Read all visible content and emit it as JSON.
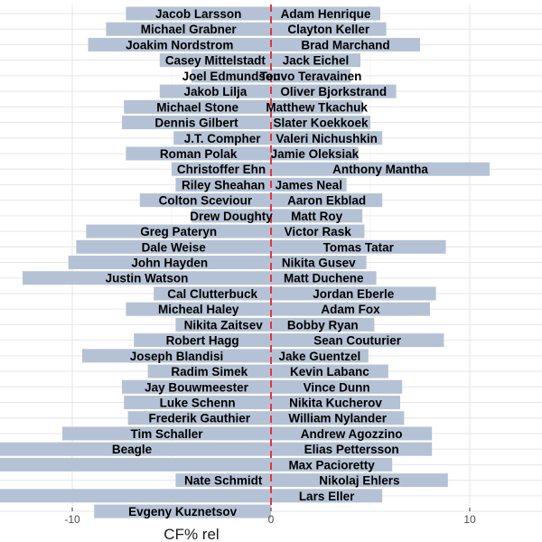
{
  "chart_data": {
    "type": "bar",
    "orientation": "horizontal",
    "xlabel": "CF% rel",
    "x_ticks": [
      -10,
      0,
      10
    ],
    "xlim": [
      -13.6,
      13.6
    ],
    "reference_line": {
      "x": 0,
      "style": "dashed",
      "color": "#e8333d"
    },
    "bar_color": "#b5c2d5",
    "grid": true,
    "series": [
      {
        "side": "left",
        "labels": [
          "Jacob Larsson",
          "Michael Grabner",
          "Joakim Nordstrom",
          "Casey Mittelstadt",
          "Joel Edmundson",
          "Jakob Lilja",
          "Michael Stone",
          "Dennis Gilbert",
          "J.T. Compher",
          "Roman Polak",
          "Christoffer Ehn",
          "Riley Sheahan",
          "Colton Sceviour",
          "Drew Doughty",
          "Greg Pateryn",
          "Dale Weise",
          "John Hayden",
          "Justin Watson",
          "Cal Clutterbuck",
          "Micheal Haley",
          "Nikita Zaitsev",
          "Robert Hagg",
          "Joseph Blandisi",
          "Radim Simek",
          "Jay Bouwmeester",
          "Luke Schenn",
          "Frederik Gauthier",
          "Tim Schaller",
          "Beagle",
          "",
          "Nate Schmidt",
          "",
          "Evgeny Kuznetsov"
        ],
        "values": [
          -7.3,
          -8.3,
          -9.2,
          -5.6,
          -4.0,
          -5.6,
          -7.4,
          -7.5,
          -4.9,
          -7.3,
          -5.0,
          -4.8,
          -6.6,
          -4.0,
          -9.3,
          -9.8,
          -10.2,
          -12.5,
          -5.9,
          -7.3,
          -4.8,
          -6.9,
          -9.5,
          -6.2,
          -7.5,
          -7.4,
          -7.2,
          -10.5,
          -14.0,
          -14.0,
          -4.8,
          -14.0,
          -8.9
        ]
      },
      {
        "side": "right",
        "labels": [
          "Adam Henrique",
          "Clayton Keller",
          "Brad Marchand",
          "Jack Eichel",
          "Teuvo Teravainen",
          "Oliver Bjorkstrand",
          "Matthew Tkachuk",
          "Slater Koekkoek",
          "Valeri Nichushkin",
          "Jamie Oleksiak",
          "Anthony Mantha",
          "James Neal",
          "Aaron Ekblad",
          "Matt Roy",
          "Victor Rask",
          "Tomas Tatar",
          "Nikita Gusev",
          "Matt Duchene",
          "Jordan Eberle",
          "Adam Fox",
          "Bobby Ryan",
          "Sean Couturier",
          "Jake Guentzel",
          "Kevin Labanc",
          "Vince Dunn",
          "Nikita Kucherov",
          "William Nylander",
          "Andrew Agozzino",
          "Elias Pettersson",
          "Max Pacioretty",
          "Nikolaj Ehlers",
          "Lars Eller"
        ],
        "values": [
          5.5,
          5.8,
          7.5,
          4.5,
          4.0,
          6.3,
          4.6,
          5.0,
          5.6,
          4.4,
          11.0,
          3.8,
          5.6,
          4.6,
          4.7,
          8.8,
          4.8,
          5.3,
          8.3,
          8.0,
          5.2,
          8.7,
          4.9,
          5.9,
          6.6,
          6.5,
          6.7,
          8.1,
          8.1,
          6.1,
          8.9,
          5.6
        ]
      }
    ]
  }
}
